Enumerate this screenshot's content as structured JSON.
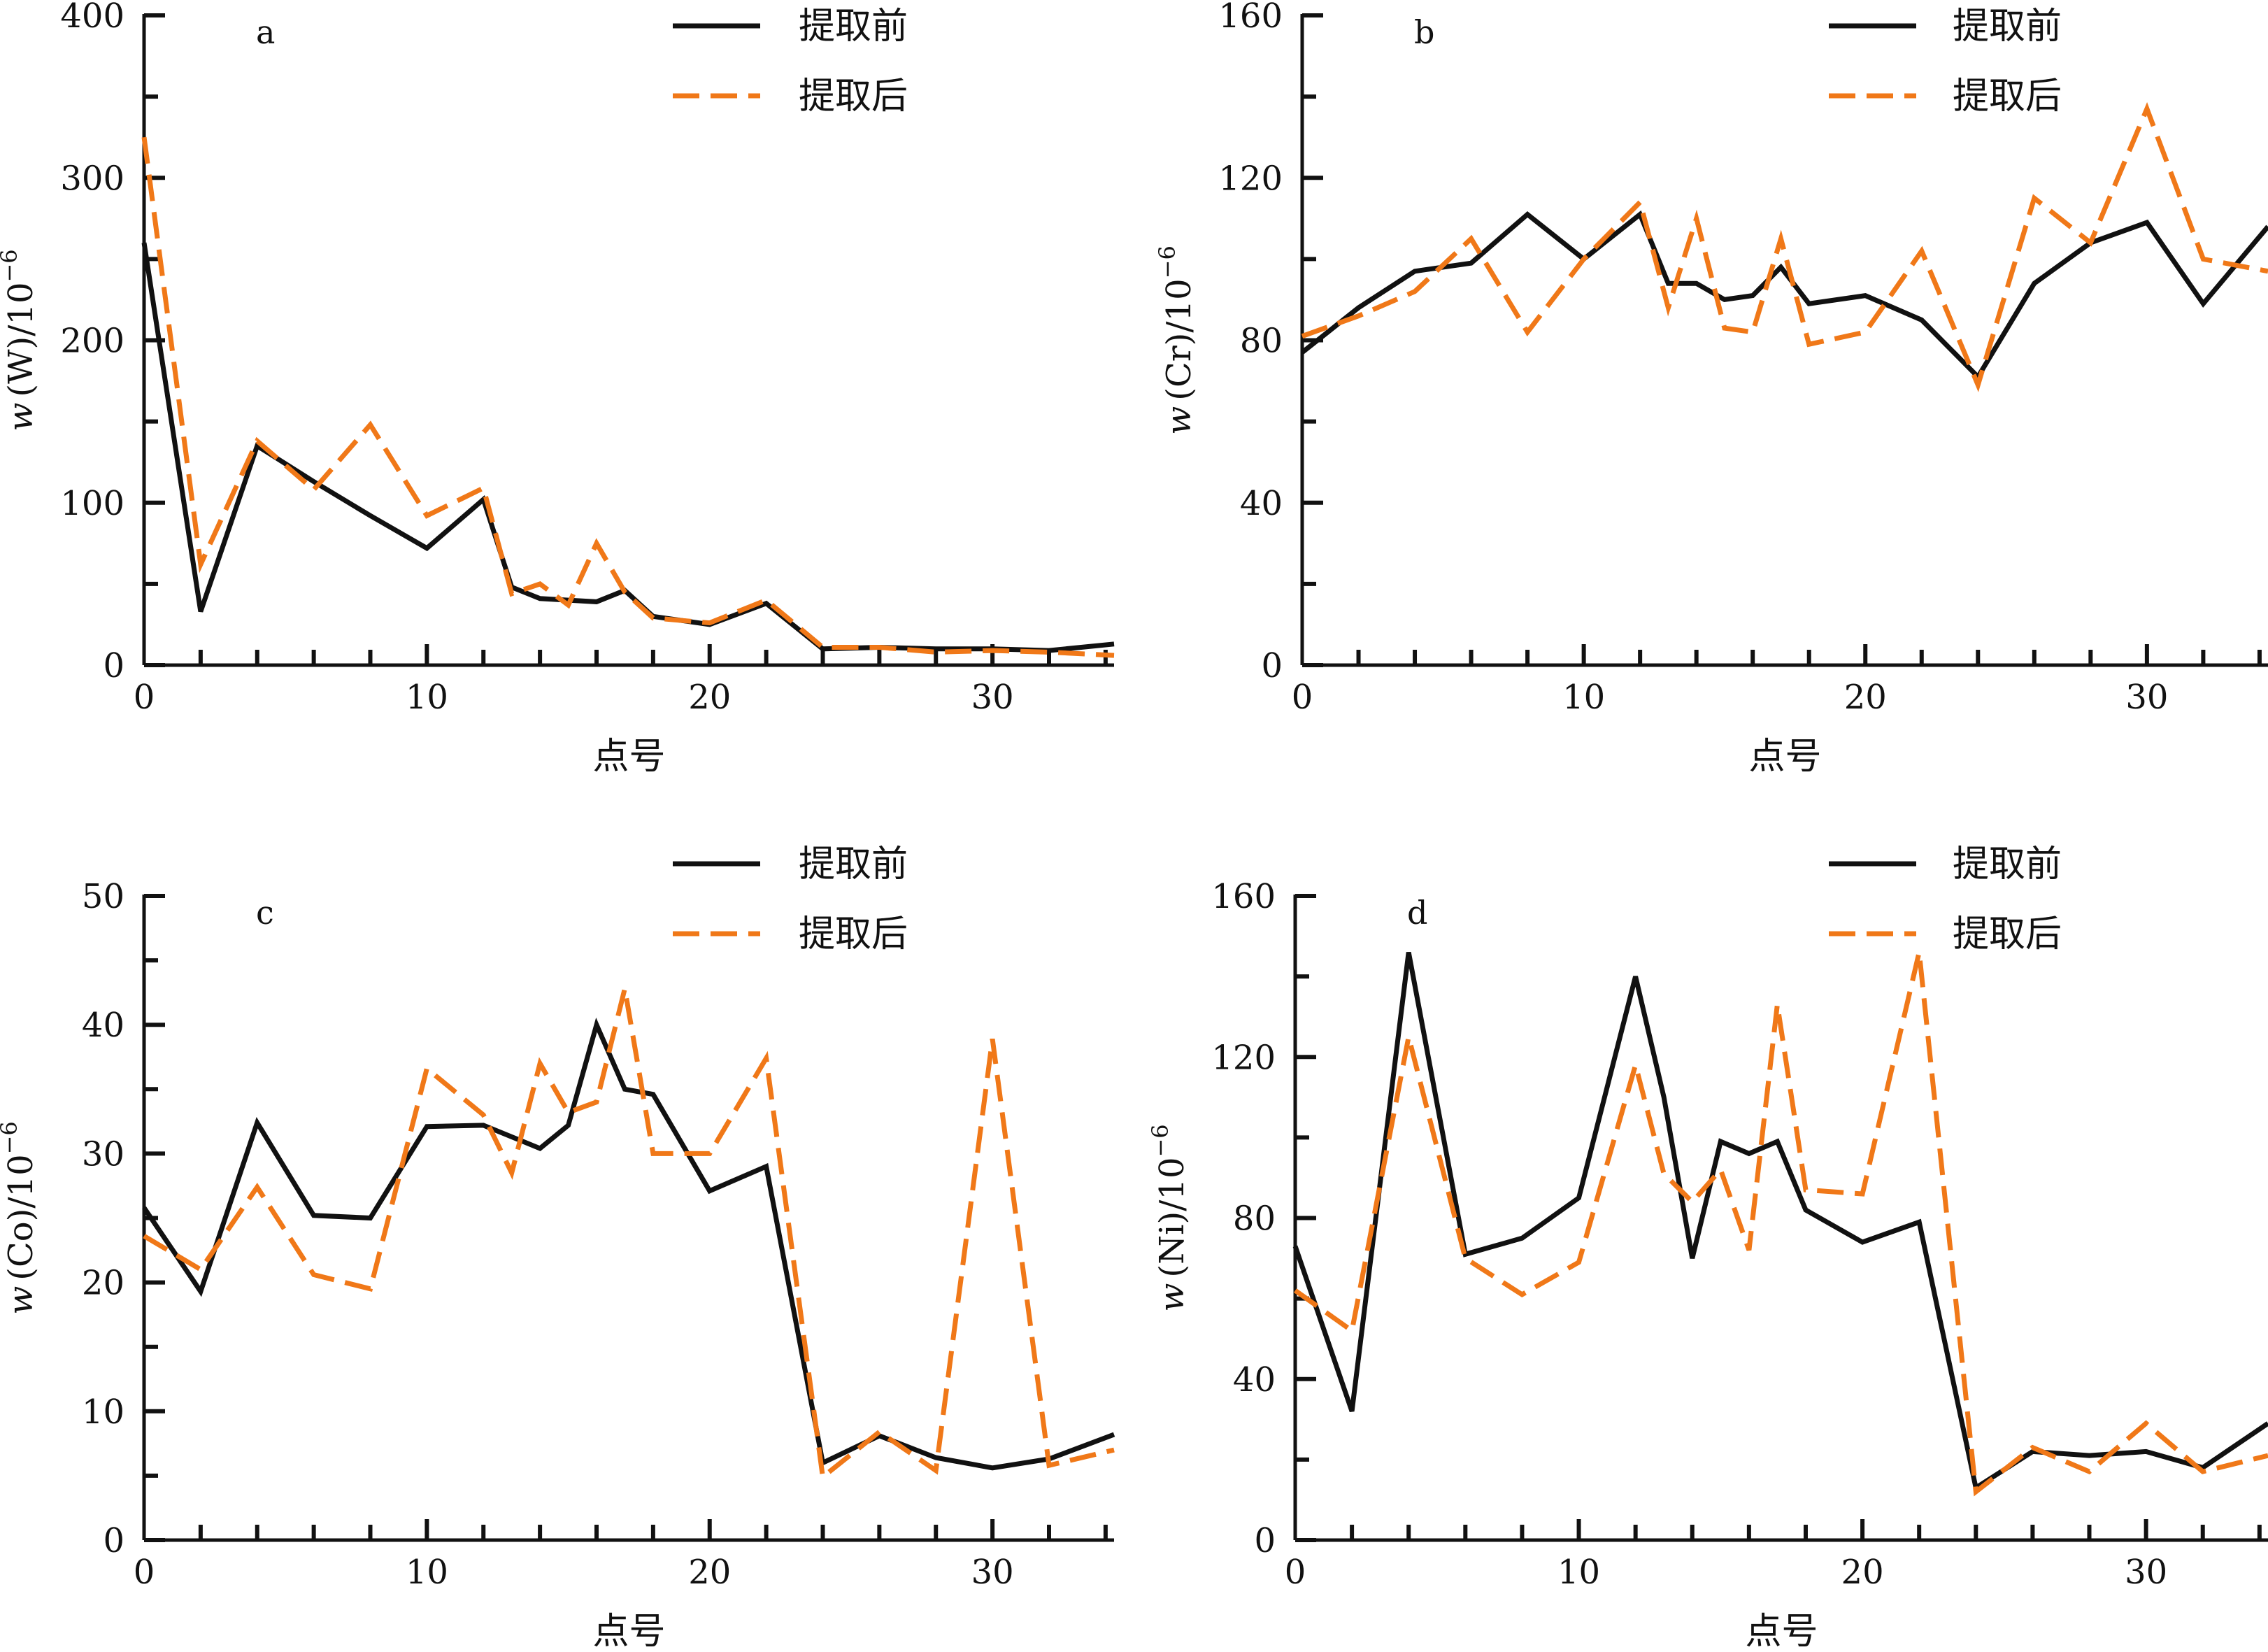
{
  "colors": {
    "before": "#111111",
    "after": "#f07818"
  },
  "legend": {
    "before": "提取前",
    "after": "提取后"
  },
  "chart_data": [
    {
      "type": "line",
      "panel_label": "a",
      "xlabel": "点号",
      "ylabel_prefix": "w",
      "ylabel_element": "(W)",
      "ylabel_unit": "/10",
      "ylabel_exp": "−6",
      "xlim": [
        0,
        34.3
      ],
      "ylim": [
        0,
        400
      ],
      "xticks": [
        0,
        10,
        20,
        30
      ],
      "yticks": [
        0,
        100,
        200,
        300,
        400
      ],
      "series": [
        {
          "name": "提取前",
          "points": [
            [
              0,
              260
            ],
            [
              2,
              33
            ],
            [
              4,
              135
            ],
            [
              6,
              113
            ],
            [
              8,
              92
            ],
            [
              10,
              72
            ],
            [
              12,
              102
            ],
            [
              13,
              48
            ],
            [
              14,
              41
            ],
            [
              15,
              40
            ],
            [
              16,
              39
            ],
            [
              17,
              46
            ],
            [
              18,
              30
            ],
            [
              20,
              25
            ],
            [
              22,
              38
            ],
            [
              24,
              10
            ],
            [
              26,
              11
            ],
            [
              28,
              10
            ],
            [
              30,
              10
            ],
            [
              32,
              9
            ],
            [
              34.3,
              13
            ]
          ]
        },
        {
          "name": "提取后",
          "points": [
            [
              0,
              325
            ],
            [
              2,
              62
            ],
            [
              4,
              138
            ],
            [
              6,
              108
            ],
            [
              8,
              148
            ],
            [
              10,
              92
            ],
            [
              12,
              109
            ],
            [
              13,
              44
            ],
            [
              14,
              50
            ],
            [
              15,
              37
            ],
            [
              16,
              75
            ],
            [
              17,
              45
            ],
            [
              18,
              29
            ],
            [
              20,
              26
            ],
            [
              22,
              40
            ],
            [
              24,
              11
            ],
            [
              26,
              11
            ],
            [
              28,
              8
            ],
            [
              30,
              9
            ],
            [
              32,
              8
            ],
            [
              34.3,
              6
            ]
          ]
        }
      ]
    },
    {
      "type": "line",
      "panel_label": "b",
      "xlabel": "点号",
      "ylabel_prefix": "w",
      "ylabel_element": "(Cr)",
      "ylabel_unit": "/10",
      "ylabel_exp": "−6",
      "xlim": [
        0,
        34.3
      ],
      "ylim": [
        0,
        160
      ],
      "xticks": [
        0,
        10,
        20,
        30
      ],
      "yticks": [
        0,
        40,
        80,
        120,
        160
      ],
      "series": [
        {
          "name": "提取前",
          "points": [
            [
              0,
              77
            ],
            [
              2,
              88
            ],
            [
              4,
              97
            ],
            [
              6,
              99
            ],
            [
              8,
              111
            ],
            [
              10,
              100
            ],
            [
              12,
              111
            ],
            [
              13,
              94
            ],
            [
              14,
              94
            ],
            [
              15,
              90
            ],
            [
              16,
              91
            ],
            [
              17,
              98
            ],
            [
              18,
              89
            ],
            [
              20,
              91
            ],
            [
              22,
              85
            ],
            [
              24,
              71
            ],
            [
              26,
              94
            ],
            [
              28,
              104
            ],
            [
              30,
              109
            ],
            [
              32,
              89
            ],
            [
              34.3,
              108
            ]
          ]
        },
        {
          "name": "提取后",
          "points": [
            [
              0,
              81
            ],
            [
              2,
              86
            ],
            [
              4,
              92
            ],
            [
              6,
              105
            ],
            [
              8,
              82
            ],
            [
              10,
              100
            ],
            [
              12,
              114
            ],
            [
              13,
              88
            ],
            [
              14,
              110
            ],
            [
              15,
              83
            ],
            [
              16,
              82
            ],
            [
              17,
              105
            ],
            [
              18,
              79
            ],
            [
              20,
              82
            ],
            [
              22,
              102
            ],
            [
              24,
              69
            ],
            [
              26,
              115
            ],
            [
              28,
              104
            ],
            [
              30,
              137
            ],
            [
              32,
              100
            ],
            [
              34.3,
              97
            ]
          ]
        }
      ]
    },
    {
      "type": "line",
      "panel_label": "c",
      "xlabel": "点号",
      "ylabel_prefix": "w",
      "ylabel_element": "(Co)",
      "ylabel_unit": "/10",
      "ylabel_exp": "−6",
      "xlim": [
        0,
        34.3
      ],
      "ylim": [
        0,
        50
      ],
      "xticks": [
        0,
        10,
        20,
        30
      ],
      "yticks": [
        0,
        10,
        20,
        30,
        40,
        50
      ],
      "series": [
        {
          "name": "提取前",
          "points": [
            [
              0,
              25.8
            ],
            [
              2,
              19.3
            ],
            [
              4,
              32.4
            ],
            [
              6,
              25.2
            ],
            [
              8,
              25
            ],
            [
              10,
              32.1
            ],
            [
              12,
              32.2
            ],
            [
              14,
              30.4
            ],
            [
              15,
              32.2
            ],
            [
              16,
              40
            ],
            [
              17,
              35
            ],
            [
              18,
              34.6
            ],
            [
              20,
              27.1
            ],
            [
              22,
              29
            ],
            [
              24,
              6
            ],
            [
              26,
              8.1
            ],
            [
              28,
              6.4
            ],
            [
              30,
              5.6
            ],
            [
              32,
              6.3
            ],
            [
              34.3,
              8.2
            ]
          ]
        },
        {
          "name": "提取后",
          "points": [
            [
              0,
              23.6
            ],
            [
              2,
              21
            ],
            [
              4,
              27.4
            ],
            [
              6,
              20.6
            ],
            [
              8,
              19.5
            ],
            [
              10,
              36.6
            ],
            [
              12,
              33
            ],
            [
              13,
              28.5
            ],
            [
              14,
              37
            ],
            [
              15,
              33.2
            ],
            [
              16,
              34
            ],
            [
              17,
              42.8
            ],
            [
              18,
              30
            ],
            [
              20,
              30
            ],
            [
              22,
              37.4
            ],
            [
              24,
              4.9
            ],
            [
              26,
              8.4
            ],
            [
              28,
              5.4
            ],
            [
              30,
              38.9
            ],
            [
              32,
              5.8
            ],
            [
              34.3,
              7
            ]
          ]
        }
      ]
    },
    {
      "type": "line",
      "panel_label": "d",
      "xlabel": "点号",
      "ylabel_prefix": "w",
      "ylabel_element": "(Ni)",
      "ylabel_unit": "/10",
      "ylabel_exp": "−6",
      "xlim": [
        0,
        34.3
      ],
      "ylim": [
        0,
        160
      ],
      "xticks": [
        0,
        10,
        20,
        30
      ],
      "yticks": [
        0,
        40,
        80,
        120,
        160
      ],
      "series": [
        {
          "name": "提取前",
          "points": [
            [
              0,
              73
            ],
            [
              2,
              32
            ],
            [
              4,
              146
            ],
            [
              6,
              71
            ],
            [
              8,
              75
            ],
            [
              10,
              85
            ],
            [
              12,
              140
            ],
            [
              13,
              110
            ],
            [
              14,
              70
            ],
            [
              15,
              99
            ],
            [
              16,
              96
            ],
            [
              17,
              99
            ],
            [
              18,
              82
            ],
            [
              20,
              74
            ],
            [
              22,
              79
            ],
            [
              24,
              13
            ],
            [
              26,
              22
            ],
            [
              28,
              21
            ],
            [
              30,
              22
            ],
            [
              32,
              18
            ],
            [
              34.3,
              29
            ]
          ]
        },
        {
          "name": "提取后",
          "points": [
            [
              0,
              62
            ],
            [
              2,
              52
            ],
            [
              4,
              125
            ],
            [
              6,
              70
            ],
            [
              8,
              61
            ],
            [
              10,
              69
            ],
            [
              12,
              118
            ],
            [
              13,
              91
            ],
            [
              14,
              84
            ],
            [
              15,
              92
            ],
            [
              16,
              72
            ],
            [
              17,
              133
            ],
            [
              18,
              87
            ],
            [
              20,
              86
            ],
            [
              22,
              146
            ],
            [
              24,
              12
            ],
            [
              26,
              23
            ],
            [
              28,
              17
            ],
            [
              30,
              29
            ],
            [
              32,
              17
            ],
            [
              34.3,
              21
            ]
          ]
        }
      ]
    }
  ]
}
